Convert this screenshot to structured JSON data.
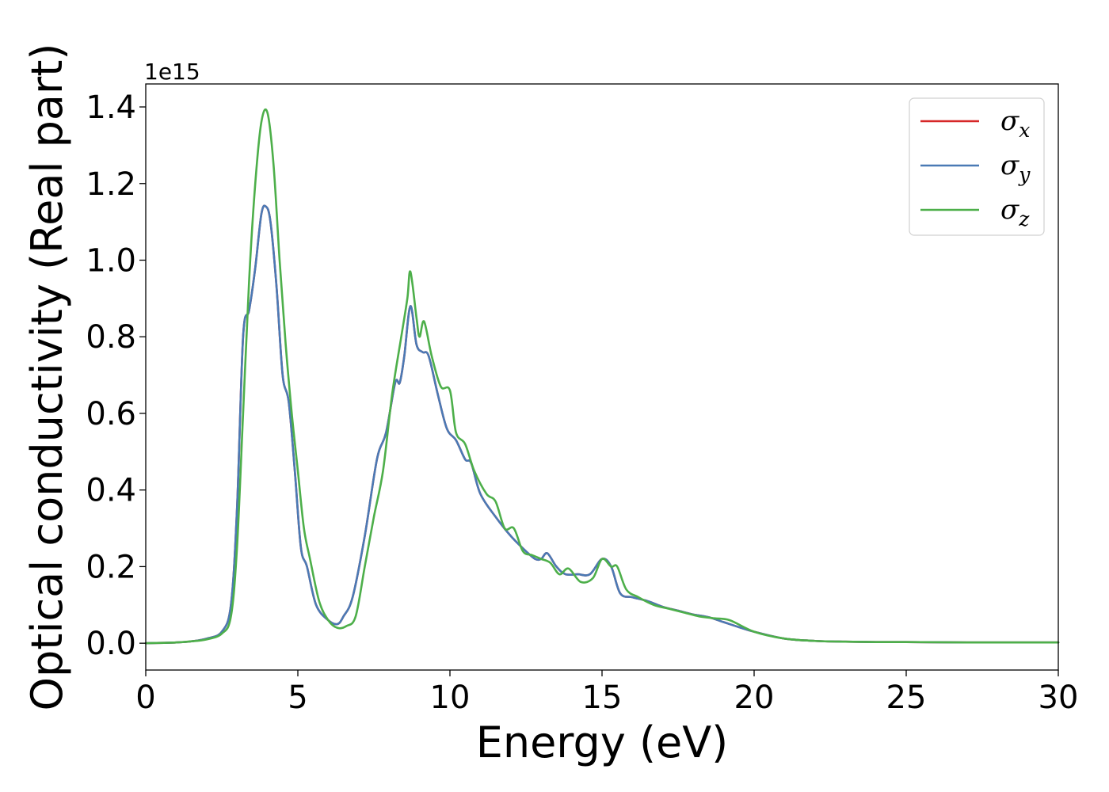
{
  "chart_data": {
    "type": "line",
    "xlabel": "Energy (eV)",
    "ylabel": "Optical conductivity (Real part)",
    "y_offset_text": "1e15",
    "xlim": [
      0,
      30
    ],
    "ylim": [
      -0.07,
      1.46
    ],
    "y_scale_factor": 1000000000000000.0,
    "x_ticks": [
      0,
      5,
      10,
      15,
      20,
      25,
      30
    ],
    "x_tick_labels": [
      "0",
      "5",
      "10",
      "15",
      "20",
      "25",
      "30"
    ],
    "y_ticks": [
      0.0,
      0.2,
      0.4,
      0.6,
      0.8,
      1.0,
      1.2,
      1.4
    ],
    "y_tick_labels": [
      "0.0",
      "0.2",
      "0.4",
      "0.6",
      "0.8",
      "1.0",
      "1.2",
      "1.4"
    ],
    "grid": false,
    "legend_position": "top-right",
    "series": [
      {
        "name": "σx",
        "legend_base": "σ",
        "legend_sub": "x",
        "color": "#d62728",
        "x": [
          0,
          1,
          1.5,
          2,
          2.5,
          2.8,
          3,
          3.2,
          3.4,
          3.6,
          3.8,
          3.95,
          4.1,
          4.3,
          4.5,
          4.7,
          4.9,
          5.1,
          5.3,
          5.6,
          6,
          6.3,
          6.5,
          6.8,
          7.2,
          7.6,
          7.9,
          8.2,
          8.35,
          8.5,
          8.7,
          8.9,
          9.1,
          9.3,
          9.6,
          9.9,
          10.2,
          10.5,
          10.7,
          11,
          11.5,
          12,
          12.5,
          12.8,
          13,
          13.2,
          13.5,
          13.8,
          14.2,
          14.6,
          15,
          15.3,
          15.6,
          16,
          16.5,
          17,
          17.5,
          18,
          18.5,
          19,
          19.5,
          20,
          21,
          22,
          23,
          24,
          25,
          27,
          30
        ],
        "values": [
          0.0,
          0.002,
          0.005,
          0.012,
          0.03,
          0.1,
          0.35,
          0.8,
          0.87,
          0.98,
          1.12,
          1.14,
          1.1,
          0.93,
          0.7,
          0.63,
          0.45,
          0.25,
          0.2,
          0.1,
          0.06,
          0.05,
          0.07,
          0.12,
          0.28,
          0.48,
          0.55,
          0.68,
          0.68,
          0.75,
          0.88,
          0.78,
          0.76,
          0.75,
          0.65,
          0.56,
          0.53,
          0.48,
          0.47,
          0.39,
          0.33,
          0.28,
          0.24,
          0.22,
          0.22,
          0.235,
          0.2,
          0.18,
          0.18,
          0.18,
          0.22,
          0.2,
          0.13,
          0.12,
          0.11,
          0.095,
          0.085,
          0.075,
          0.068,
          0.055,
          0.042,
          0.03,
          0.012,
          0.006,
          0.004,
          0.003,
          0.003,
          0.002,
          0.002
        ]
      },
      {
        "name": "σy",
        "legend_base": "σ",
        "legend_sub": "y",
        "color": "#4a7ab5",
        "x": [
          0,
          1,
          1.5,
          2,
          2.5,
          2.8,
          3,
          3.2,
          3.4,
          3.6,
          3.8,
          3.95,
          4.1,
          4.3,
          4.5,
          4.7,
          4.9,
          5.1,
          5.3,
          5.6,
          6,
          6.3,
          6.5,
          6.8,
          7.2,
          7.6,
          7.9,
          8.2,
          8.35,
          8.5,
          8.7,
          8.9,
          9.1,
          9.3,
          9.6,
          9.9,
          10.2,
          10.5,
          10.7,
          11,
          11.5,
          12,
          12.5,
          12.8,
          13,
          13.2,
          13.5,
          13.8,
          14.2,
          14.6,
          15,
          15.3,
          15.6,
          16,
          16.5,
          17,
          17.5,
          18,
          18.5,
          19,
          19.5,
          20,
          21,
          22,
          23,
          24,
          25,
          27,
          30
        ],
        "values": [
          0.0,
          0.002,
          0.005,
          0.012,
          0.03,
          0.1,
          0.35,
          0.8,
          0.87,
          0.98,
          1.12,
          1.14,
          1.1,
          0.93,
          0.7,
          0.63,
          0.45,
          0.25,
          0.2,
          0.1,
          0.06,
          0.05,
          0.07,
          0.12,
          0.28,
          0.48,
          0.55,
          0.68,
          0.68,
          0.75,
          0.88,
          0.78,
          0.76,
          0.75,
          0.65,
          0.56,
          0.53,
          0.48,
          0.47,
          0.39,
          0.33,
          0.28,
          0.24,
          0.22,
          0.22,
          0.235,
          0.2,
          0.18,
          0.18,
          0.18,
          0.22,
          0.2,
          0.13,
          0.12,
          0.11,
          0.095,
          0.085,
          0.075,
          0.068,
          0.055,
          0.042,
          0.03,
          0.012,
          0.006,
          0.004,
          0.003,
          0.003,
          0.002,
          0.002
        ]
      },
      {
        "name": "σz",
        "legend_base": "σ",
        "legend_sub": "z",
        "color": "#4daf4a",
        "x": [
          0,
          1,
          1.5,
          2,
          2.5,
          2.8,
          3,
          3.2,
          3.4,
          3.6,
          3.8,
          4.0,
          4.2,
          4.4,
          4.6,
          4.8,
          5.0,
          5.2,
          5.4,
          5.7,
          6,
          6.3,
          6.6,
          6.9,
          7.2,
          7.5,
          7.8,
          8.1,
          8.4,
          8.6,
          8.7,
          8.9,
          9.0,
          9.15,
          9.4,
          9.7,
          10.0,
          10.2,
          10.5,
          10.8,
          11.2,
          11.5,
          11.8,
          12.1,
          12.4,
          12.7,
          13.0,
          13.3,
          13.6,
          13.9,
          14.3,
          14.7,
          15.0,
          15.3,
          15.5,
          15.8,
          16.2,
          16.7,
          17.2,
          17.7,
          18.2,
          18.7,
          19.2,
          20,
          21,
          22,
          23,
          24,
          25,
          27,
          30
        ],
        "values": [
          0.0,
          0.002,
          0.005,
          0.01,
          0.025,
          0.07,
          0.25,
          0.6,
          0.95,
          1.2,
          1.36,
          1.385,
          1.25,
          1.0,
          0.78,
          0.6,
          0.45,
          0.3,
          0.22,
          0.11,
          0.06,
          0.04,
          0.045,
          0.07,
          0.2,
          0.33,
          0.45,
          0.65,
          0.8,
          0.9,
          0.97,
          0.85,
          0.8,
          0.84,
          0.75,
          0.67,
          0.66,
          0.55,
          0.52,
          0.45,
          0.39,
          0.37,
          0.3,
          0.3,
          0.24,
          0.23,
          0.22,
          0.21,
          0.18,
          0.195,
          0.16,
          0.17,
          0.22,
          0.2,
          0.2,
          0.14,
          0.12,
          0.1,
          0.09,
          0.08,
          0.07,
          0.065,
          0.06,
          0.03,
          0.012,
          0.006,
          0.004,
          0.003,
          0.003,
          0.002,
          0.002
        ]
      }
    ]
  }
}
